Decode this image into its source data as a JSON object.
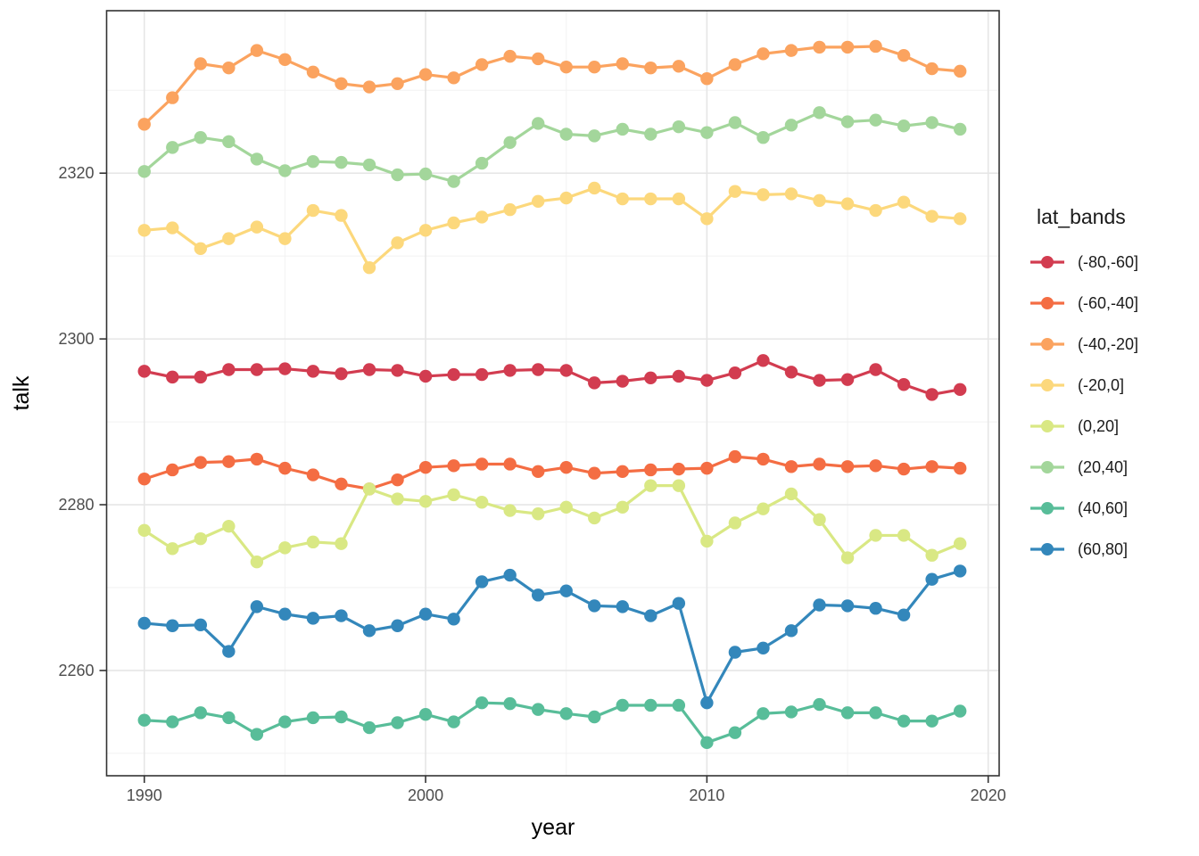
{
  "figure": {
    "x_axis_title": "year",
    "y_axis_title": "talk",
    "background_color": "#ffffff",
    "panel_border_color": "#333333",
    "grid_major_color": "#e6e6e6",
    "grid_minor_color": "#f2f2f2",
    "tick_label_color": "#4d4d4d",
    "axis_title_color": "#1a1a1a"
  },
  "legend": {
    "title": "lat_bands",
    "position": "right"
  },
  "chart_data": {
    "type": "line",
    "title": "",
    "xlabel": "year",
    "ylabel": "talk",
    "x": [
      1990,
      1991,
      1992,
      1993,
      1994,
      1995,
      1996,
      1997,
      1998,
      1999,
      2000,
      2001,
      2002,
      2003,
      2004,
      2005,
      2006,
      2007,
      2008,
      2009,
      2010,
      2011,
      2012,
      2013,
      2014,
      2015,
      2016,
      2017,
      2018,
      2019
    ],
    "xlim": [
      1988.66,
      2020.39
    ],
    "ylim": [
      2247.3,
      2339.6
    ],
    "x_ticks": [
      1990,
      2000,
      2010,
      2020
    ],
    "x_minor_breaks": [
      1995,
      2005,
      2015
    ],
    "y_ticks": [
      2260,
      2280,
      2300,
      2320
    ],
    "y_minor_breaks": [
      2250,
      2270,
      2290,
      2310,
      2330
    ],
    "grid": true,
    "legend_position": "right",
    "legend_title": "lat_bands",
    "series": [
      {
        "name": "(-80,-60]",
        "color": "#d23c50",
        "values": [
          2296.1,
          2295.4,
          2295.4,
          2296.3,
          2296.3,
          2296.4,
          2296.1,
          2295.8,
          2296.3,
          2296.2,
          2295.5,
          2295.7,
          2295.7,
          2296.2,
          2296.3,
          2296.2,
          2294.7,
          2294.9,
          2295.3,
          2295.5,
          2295.0,
          2295.9,
          2297.4,
          2296.0,
          2295.0,
          2295.1,
          2296.3,
          2294.5,
          2293.3,
          2293.9
        ]
      },
      {
        "name": "(-60,-40]",
        "color": "#f46d43",
        "values": [
          2283.1,
          2284.2,
          2285.1,
          2285.2,
          2285.5,
          2284.4,
          2283.6,
          2282.5,
          2281.9,
          2283.0,
          2284.5,
          2284.7,
          2284.9,
          2284.9,
          2284.0,
          2284.5,
          2283.8,
          2284.0,
          2284.2,
          2284.3,
          2284.4,
          2285.8,
          2285.5,
          2284.6,
          2284.9,
          2284.6,
          2284.7,
          2284.3,
          2284.6,
          2284.4
        ]
      },
      {
        "name": "(-40,-20]",
        "color": "#fba35f",
        "values": [
          2325.9,
          2329.1,
          2333.2,
          2332.7,
          2334.8,
          2333.7,
          2332.2,
          2330.8,
          2330.4,
          2330.8,
          2331.9,
          2331.5,
          2333.1,
          2334.1,
          2333.8,
          2332.8,
          2332.8,
          2333.2,
          2332.7,
          2332.9,
          2331.4,
          2333.1,
          2334.4,
          2334.8,
          2335.2,
          2335.2,
          2335.3,
          2334.2,
          2332.6,
          2332.3
        ]
      },
      {
        "name": "(-20,0]",
        "color": "#fcd87c",
        "values": [
          2313.1,
          2313.4,
          2310.9,
          2312.1,
          2313.5,
          2312.1,
          2315.5,
          2314.9,
          2308.6,
          2311.6,
          2313.1,
          2314.0,
          2314.7,
          2315.6,
          2316.6,
          2317.0,
          2318.2,
          2316.9,
          2316.9,
          2316.9,
          2314.5,
          2317.8,
          2317.4,
          2317.5,
          2316.7,
          2316.3,
          2315.5,
          2316.5,
          2314.8,
          2314.5
        ]
      },
      {
        "name": "(0,20]",
        "color": "#d9e884",
        "values": [
          2276.9,
          2274.7,
          2275.9,
          2277.4,
          2273.1,
          2274.8,
          2275.5,
          2275.3,
          2281.9,
          2280.7,
          2280.4,
          2281.2,
          2280.3,
          2279.3,
          2278.9,
          2279.7,
          2278.4,
          2279.7,
          2282.3,
          2282.3,
          2275.6,
          2277.8,
          2279.5,
          2281.3,
          2278.2,
          2273.6,
          2276.3,
          2276.3,
          2273.9,
          2275.3
        ]
      },
      {
        "name": "(20,40]",
        "color": "#a3d69b",
        "values": [
          2320.2,
          2323.1,
          2324.3,
          2323.8,
          2321.7,
          2320.3,
          2321.4,
          2321.3,
          2321.0,
          2319.8,
          2319.9,
          2319.0,
          2321.2,
          2323.7,
          2326.0,
          2324.7,
          2324.5,
          2325.3,
          2324.7,
          2325.6,
          2324.9,
          2326.1,
          2324.3,
          2325.8,
          2327.3,
          2326.2,
          2326.4,
          2325.7,
          2326.1,
          2325.3
        ]
      },
      {
        "name": "(40,60]",
        "color": "#58bd99",
        "values": [
          2254.0,
          2253.8,
          2254.9,
          2254.3,
          2252.3,
          2253.8,
          2254.3,
          2254.4,
          2253.1,
          2253.7,
          2254.7,
          2253.8,
          2256.1,
          2256.0,
          2255.3,
          2254.8,
          2254.4,
          2255.8,
          2255.8,
          2255.8,
          2251.3,
          2252.5,
          2254.8,
          2255.0,
          2255.9,
          2254.9,
          2254.9,
          2253.9,
          2253.9,
          2255.1
        ]
      },
      {
        "name": "(60,80]",
        "color": "#3387bb",
        "values": [
          2265.7,
          2265.4,
          2265.5,
          2262.3,
          2267.7,
          2266.8,
          2266.3,
          2266.6,
          2264.8,
          2265.4,
          2266.8,
          2266.2,
          2270.7,
          2271.5,
          2269.1,
          2269.6,
          2267.8,
          2267.7,
          2266.6,
          2268.1,
          2256.1,
          2262.2,
          2262.7,
          2264.8,
          2267.9,
          2267.8,
          2267.5,
          2266.7,
          2271.0,
          2272.0
        ]
      }
    ]
  }
}
